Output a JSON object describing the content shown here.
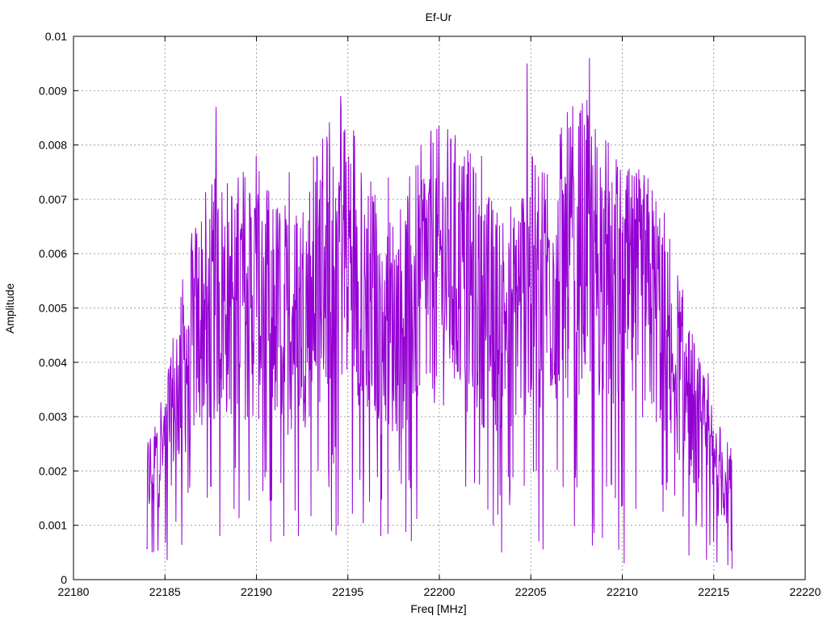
{
  "chart_data": {
    "type": "line",
    "title": "Ef-Ur",
    "xlabel": "Freq [MHz]",
    "ylabel": "Amplitude",
    "xlim": [
      22180,
      22220
    ],
    "ylim": [
      0,
      0.01
    ],
    "x_ticks": [
      "22180",
      "22185",
      "22190",
      "22195",
      "22200",
      "22205",
      "22210",
      "22215",
      "22220"
    ],
    "y_ticks": [
      "0",
      "0.001",
      "0.002",
      "0.003",
      "0.004",
      "0.005",
      "0.006",
      "0.007",
      "0.008",
      "0.009",
      "0.01"
    ],
    "grid": true,
    "line_color": "#9400d3",
    "series": [
      {
        "x_start": 22184.0,
        "x_end": 22216.0,
        "note_points": [
          [
            22184.0,
            0.0006
          ],
          [
            22184.3,
            0.0005
          ],
          [
            22184.6,
            0.0017
          ],
          [
            22184.9,
            0.0024
          ],
          [
            22185.3,
            0.0037
          ],
          [
            22185.8,
            0.0045
          ],
          [
            22186.3,
            0.0046
          ],
          [
            22186.8,
            0.0052
          ],
          [
            22187.3,
            0.0054
          ],
          [
            22187.8,
            0.0087
          ],
          [
            22188.0,
            0.0008
          ],
          [
            22188.5,
            0.0052
          ],
          [
            22189.0,
            0.0074
          ],
          [
            22189.5,
            0.003
          ],
          [
            22190.0,
            0.0078
          ],
          [
            22190.3,
            0.0066
          ],
          [
            22190.8,
            0.0007
          ],
          [
            22191.2,
            0.006
          ],
          [
            22191.8,
            0.0075
          ],
          [
            22192.3,
            0.0008
          ],
          [
            22192.8,
            0.006
          ],
          [
            22193.5,
            0.005
          ],
          [
            22194.2,
            0.0076
          ],
          [
            22194.6,
            0.0089
          ],
          [
            22195.0,
            0.0048
          ],
          [
            22195.5,
            0.0065
          ],
          [
            22196.2,
            0.006
          ],
          [
            22196.8,
            0.0008
          ],
          [
            22197.2,
            0.0074
          ],
          [
            22197.8,
            0.002
          ],
          [
            22198.5,
            0.0058
          ],
          [
            22199.0,
            0.008
          ],
          [
            22199.5,
            0.0038
          ],
          [
            22200.0,
            0.007
          ],
          [
            22200.5,
            0.0052
          ],
          [
            22201.2,
            0.0068
          ],
          [
            22201.8,
            0.0038
          ],
          [
            22202.3,
            0.0078
          ],
          [
            22202.8,
            0.0045
          ],
          [
            22203.4,
            0.0005
          ],
          [
            22203.8,
            0.0062
          ],
          [
            22204.3,
            0.0048
          ],
          [
            22204.8,
            0.0095
          ],
          [
            22205.3,
            0.002
          ],
          [
            22205.8,
            0.007
          ],
          [
            22206.3,
            0.004
          ],
          [
            22206.8,
            0.0071
          ],
          [
            22207.4,
            0.0055
          ],
          [
            22208.0,
            0.0052
          ],
          [
            22208.2,
            0.0096
          ],
          [
            22208.7,
            0.0045
          ],
          [
            22209.2,
            0.0063
          ],
          [
            22209.7,
            0.0071
          ],
          [
            22210.1,
            0.0003
          ],
          [
            22210.5,
            0.0058
          ],
          [
            22211.0,
            0.0072
          ],
          [
            22211.6,
            0.005
          ],
          [
            22212.2,
            0.0063
          ],
          [
            22212.8,
            0.0035
          ],
          [
            22213.4,
            0.0042
          ],
          [
            22213.8,
            0.0029
          ],
          [
            22214.3,
            0.0031
          ],
          [
            22214.7,
            0.0038
          ],
          [
            22215.0,
            0.0007
          ],
          [
            22215.3,
            0.0023
          ],
          [
            22215.6,
            0.0012
          ],
          [
            22216.0,
            0.0002
          ]
        ]
      }
    ]
  }
}
